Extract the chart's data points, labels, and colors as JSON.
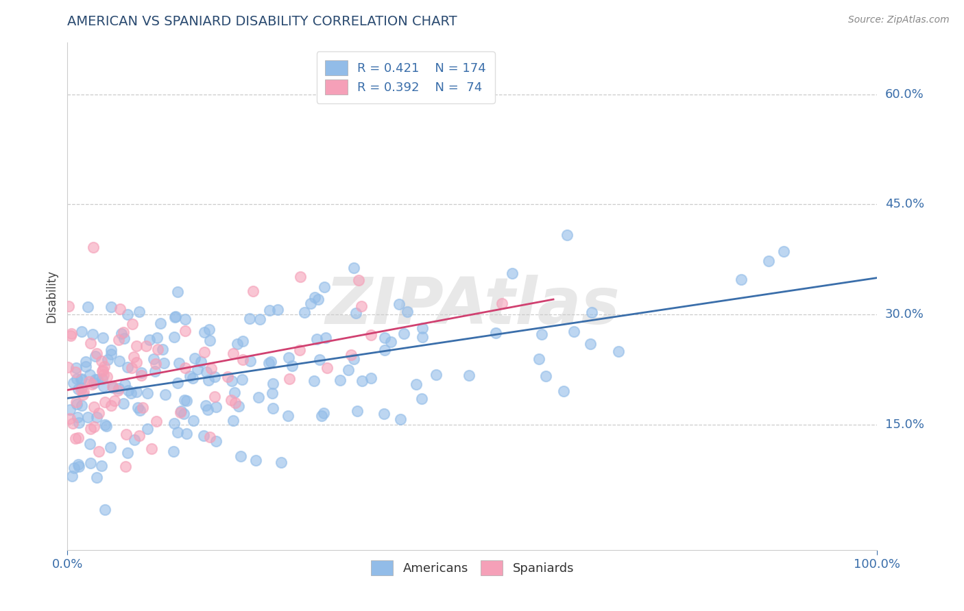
{
  "title": "AMERICAN VS SPANIARD DISABILITY CORRELATION CHART",
  "source": "Source: ZipAtlas.com",
  "ylabel": "Disability",
  "xlim": [
    0,
    100
  ],
  "ylim": [
    -2,
    67
  ],
  "ytick_vals": [
    15,
    30,
    45,
    60
  ],
  "ytick_labels": [
    "15.0%",
    "30.0%",
    "45.0%",
    "60.0%"
  ],
  "xtick_vals": [
    0,
    100
  ],
  "xtick_labels": [
    "0.0%",
    "100.0%"
  ],
  "legend_r_american": "R = 0.421",
  "legend_n_american": "N = 174",
  "legend_r_spaniard": "R = 0.392",
  "legend_n_spaniard": "N =  74",
  "american_color": "#92bce8",
  "spaniard_color": "#f5a0b8",
  "american_line_color": "#3a6eaa",
  "spaniard_line_color": "#d04070",
  "title_color": "#2a4a70",
  "label_color": "#3a6eaa",
  "watermark_text": "ZIPAtlas",
  "american_R": 0.421,
  "american_N": 174,
  "spaniard_R": 0.392,
  "spaniard_N": 74,
  "seed": 17
}
